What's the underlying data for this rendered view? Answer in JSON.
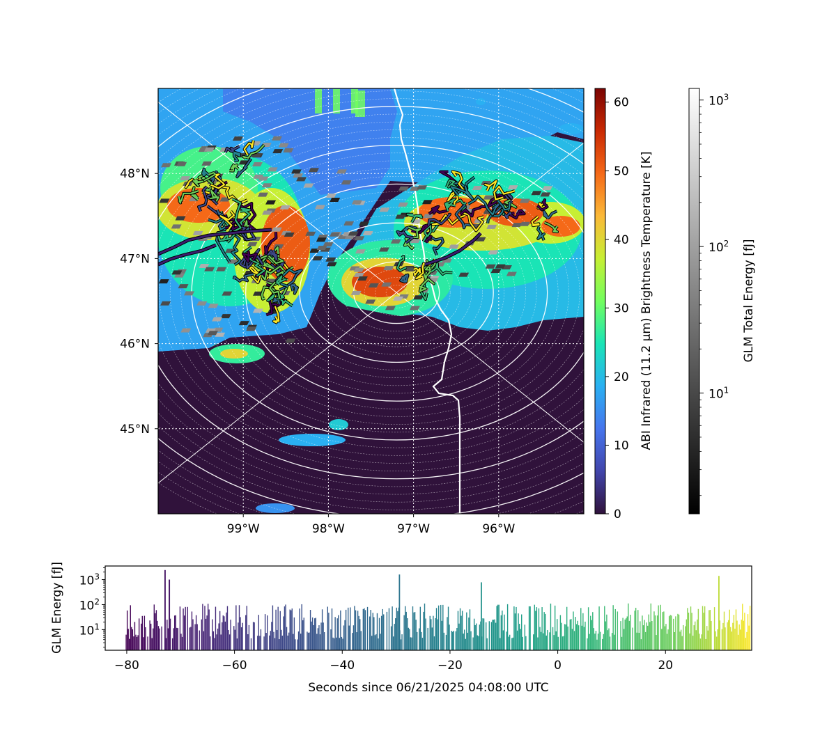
{
  "chart_data": [
    {
      "type": "heatmap",
      "title": "",
      "map": {
        "lon_range": [
          -100.0,
          -95.0
        ],
        "lat_range": [
          44.0,
          49.0
        ],
        "x_ticks": [
          "99°W",
          "98°W",
          "97°W",
          "96°W"
        ],
        "x_tick_values": [
          -99,
          -98,
          -97,
          -96
        ],
        "y_ticks": [
          "48°N",
          "47°N",
          "46°N",
          "45°N"
        ],
        "y_tick_values": [
          48,
          47,
          46,
          45
        ],
        "grid": true,
        "radar_range_rings": true,
        "radar_center": [
          -97.2,
          46.6
        ],
        "border_line": true,
        "glm_flash_paths": true
      },
      "colorbar_abi": {
        "label": "ABI Infrared (11.2 µm) Brightness Temperature [K]",
        "range": [
          0,
          62
        ],
        "ticks": [
          "0",
          "10",
          "20",
          "30",
          "40",
          "50",
          "60"
        ],
        "tick_values": [
          0,
          10,
          20,
          30,
          40,
          50,
          60
        ],
        "colormap": "turbo"
      },
      "colorbar_glm": {
        "label": "GLM Total Energy [fJ]",
        "scale": "log",
        "range": [
          1.5,
          1200
        ],
        "ticks": [
          "10^1",
          "10^2",
          "10^3"
        ],
        "tick_values": [
          10,
          100,
          1000
        ],
        "colormap": "gray"
      }
    },
    {
      "type": "bar",
      "title": "",
      "xlabel": "Seconds since 06/21/2025 04:08:00 UTC",
      "ylabel": "GLM Energy [fJ]",
      "yscale": "log",
      "xlim": [
        -84,
        36
      ],
      "ylim": [
        1.5,
        3500
      ],
      "x_ticks": [
        "−80",
        "−60",
        "−40",
        "−20",
        "0",
        "20"
      ],
      "x_tick_values": [
        -80,
        -60,
        -40,
        -20,
        0,
        20
      ],
      "y_ticks": [
        "10^1",
        "10^2",
        "10^3"
      ],
      "y_tick_values": [
        10,
        100,
        1000
      ],
      "colormap": "viridis",
      "x_start": -80.2,
      "x_end": 35.8,
      "peaks": [
        {
          "x": -73,
          "y": 2400
        },
        {
          "x": -72.2,
          "y": 1000
        },
        {
          "x": -29.5,
          "y": 1600
        },
        {
          "x": -14.3,
          "y": 780
        },
        {
          "x": 29.8,
          "y": 1400
        }
      ]
    }
  ]
}
